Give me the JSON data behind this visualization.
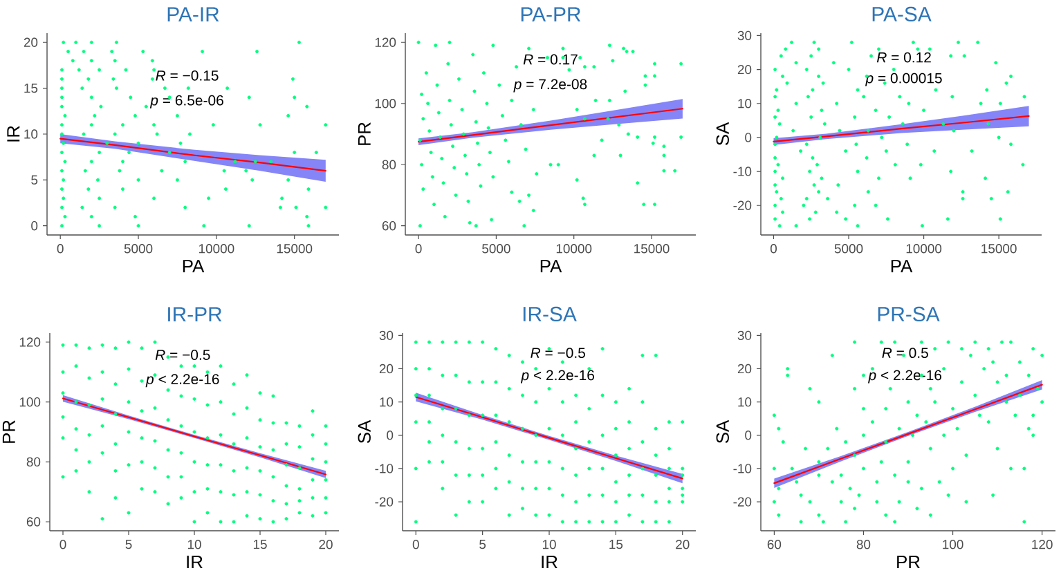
{
  "chart_data": [
    {
      "type": "scatter",
      "title": "PA-IR",
      "xlabel": "PA",
      "ylabel": "IR",
      "xlim": [
        -850,
        17850
      ],
      "ylim": [
        -1,
        21
      ],
      "xticks": [
        0,
        5000,
        10000,
        15000
      ],
      "yticks": [
        0,
        5,
        10,
        15,
        20
      ],
      "annotations": [
        "*R* = −0.15",
        "*p* = 6.5e-06"
      ],
      "series": [
        {
          "marker": "circle",
          "color": "#00ff7f",
          "x": [
            200,
            1000,
            2000,
            3600,
            15300,
            500,
            1500,
            3300,
            5300,
            9100,
            12600,
            800,
            2000,
            3500,
            5900,
            100,
            1200,
            2500,
            4200,
            6000,
            100,
            1800,
            3400,
            5900,
            14900,
            100,
            1400,
            3600,
            6700,
            8200,
            10700,
            100,
            2000,
            4500,
            7000,
            12100,
            15000,
            100,
            2600,
            5500,
            15800,
            300,
            2200,
            4800,
            7500,
            14600,
            100,
            2000,
            4000,
            6000,
            9800,
            12800,
            17000,
            100,
            1500,
            3500,
            6200,
            8300,
            200,
            3000,
            5000,
            7700,
            100,
            2500,
            4400,
            7000,
            15000,
            16400,
            300,
            2000,
            4000,
            8000,
            11200,
            12500,
            13500,
            100,
            1600,
            3800,
            6500,
            10500,
            11900,
            200,
            2400,
            5000,
            7500,
            12300,
            14600,
            100,
            1800,
            4000,
            10600,
            15900,
            200,
            2500,
            6000,
            9500,
            14200,
            100,
            1400,
            3500,
            8000,
            14100,
            15100,
            17000,
            300,
            2000,
            4800,
            15800,
            100,
            2500,
            5000,
            9200,
            12100,
            15900
          ],
          "values": [
            20,
            20,
            20,
            20,
            20,
            19,
            19,
            19,
            19,
            19,
            19,
            18,
            18,
            18,
            18,
            17,
            17,
            17,
            17,
            17,
            16,
            16,
            16,
            16,
            16,
            15,
            15,
            15,
            15,
            15,
            15,
            14,
            14,
            14,
            14,
            14,
            14,
            13,
            13,
            13,
            13,
            12,
            12,
            12,
            12,
            12,
            11,
            11,
            11,
            11,
            11,
            11,
            11,
            10,
            10,
            10,
            10,
            10,
            9,
            9,
            9,
            9,
            8,
            8,
            8,
            8,
            8,
            8,
            7,
            7,
            7,
            7,
            7,
            7,
            7,
            6,
            6,
            6,
            6,
            6,
            6,
            5,
            5,
            5,
            5,
            5,
            5,
            4,
            4,
            4,
            4,
            4,
            3,
            3,
            3,
            3,
            3,
            2,
            2,
            2,
            2,
            2,
            2,
            2,
            1,
            1,
            1,
            1,
            0,
            0,
            0,
            0,
            0,
            0
          ]
        },
        {
          "type": "line",
          "color": "#ff0000",
          "x": [
            0,
            3500,
            8500,
            12750,
            17000
          ],
          "values": [
            9.5,
            8.8,
            7.7,
            6.9,
            6.0
          ],
          "lower": [
            9.0,
            8.4,
            7.1,
            6.0,
            4.8
          ],
          "upper": [
            10.0,
            9.2,
            8.3,
            7.7,
            7.2
          ]
        }
      ]
    },
    {
      "type": "scatter",
      "title": "PA-PR",
      "xlabel": "PA",
      "ylabel": "PR",
      "xlim": [
        -850,
        17850
      ],
      "ylim": [
        57,
        123
      ],
      "xticks": [
        0,
        5000,
        10000,
        15000
      ],
      "yticks": [
        60,
        80,
        100,
        120
      ],
      "annotations": [
        "*R* = 0.17",
        "*p* = 7.2e-08"
      ],
      "series": [
        {
          "marker": "circle",
          "color": "#00ff7f",
          "x": [
            0,
            100,
            200,
            300,
            100,
            200,
            300,
            500,
            600,
            700,
            800,
            900,
            1000,
            1100,
            1200,
            1300,
            1400,
            1500,
            1600,
            1700,
            1900,
            2000,
            2100,
            2200,
            2300,
            2400,
            2000,
            2600,
            2800,
            2900,
            3000,
            3100,
            3200,
            3300,
            3500,
            3600,
            3700,
            3800,
            3900,
            4000,
            3700,
            4200,
            4400,
            4500,
            4600,
            4800,
            4700,
            4800,
            5200,
            5400,
            5600,
            5800,
            6000,
            6000,
            6300,
            6600,
            6900,
            7400,
            12300,
            13200,
            13400,
            13800,
            12500,
            15200,
            9700,
            10700,
            11300,
            15200,
            14600,
            8300,
            9300,
            9300,
            10400,
            7100,
            14600,
            13300,
            12300,
            11400,
            10200,
            10700,
            12200,
            12900,
            13500,
            14100,
            15200,
            15100,
            15800,
            16900,
            15800,
            9000,
            8500,
            7600,
            10200,
            10600,
            14500,
            10700,
            6500,
            6800,
            11800,
            11300,
            13000,
            14100,
            15800,
            7100,
            7400,
            16900,
            16500,
            15200
          ],
          "values": [
            120,
            60,
            103,
            95,
            88,
            80,
            72,
            110,
            100,
            91,
            84,
            76,
            67,
            119,
            106,
            97,
            89,
            82,
            74,
            63,
            113,
            101,
            93,
            86,
            79,
            70,
            120,
            108,
            98,
            90,
            83,
            77,
            68,
            61,
            116,
            104,
            94,
            87,
            80,
            73,
            60,
            110,
            100,
            92,
            84,
            76,
            62,
            119,
            106,
            96,
            88,
            81,
            71,
            101,
            112,
            93,
            85,
            98,
            119,
            118,
            117,
            117,
            114,
            113,
            111,
            112,
            112,
            109,
            109,
            115,
            115,
            118,
            115,
            118,
            106,
            104,
            101,
            101,
            98,
            95,
            95,
            93,
            90,
            89,
            89,
            87,
            86,
            89,
            83,
            80,
            80,
            77,
            75,
            69,
            67,
            67,
            68,
            60,
            88,
            83,
            83,
            74,
            78,
            70,
            65,
            113,
            78,
            67
          ]
        },
        {
          "type": "line",
          "color": "#ff0000",
          "x": [
            0,
            3500,
            8500,
            12750,
            17000
          ],
          "values": [
            87.5,
            89.7,
            92.9,
            95.6,
            98.3
          ],
          "lower": [
            86.4,
            88.8,
            91.4,
            93.3,
            95.1
          ],
          "upper": [
            88.6,
            90.6,
            94.4,
            97.9,
            101.5
          ]
        }
      ]
    },
    {
      "type": "scatter",
      "title": "PA-SA",
      "xlabel": "PA",
      "ylabel": "SA",
      "xlim": [
        -850,
        17850
      ],
      "ylim": [
        -28.7,
        30.7
      ],
      "xticks": [
        0,
        5000,
        10000,
        15000
      ],
      "yticks": [
        -20,
        -10,
        0,
        10,
        20,
        30
      ],
      "annotations": [
        "*R* = 0.12",
        "*p* = 0.00015"
      ],
      "series": [
        {
          "marker": "circle",
          "color": "#00ff7f",
          "x": [
            1200,
            2700,
            5200,
            9300,
            800,
            3000,
            7000,
            500,
            2500,
            6500,
            1500,
            4000,
            100,
            2200,
            5000,
            8000,
            600,
            3000,
            6200,
            900,
            3300,
            7400,
            200,
            2600,
            5600,
            100,
            2300,
            6000,
            8400,
            1500,
            4200,
            9000,
            300,
            3200,
            6800,
            100,
            2500,
            5400,
            7700,
            400,
            3400,
            8600,
            1300,
            4400,
            6300,
            200,
            3100,
            7200,
            100,
            2200,
            5500,
            8900,
            1800,
            4800,
            7500,
            100,
            2600,
            6200,
            300,
            2900,
            8100,
            100,
            2400,
            5600,
            600,
            3200,
            7000,
            100,
            2700,
            4300,
            200,
            3000,
            6300,
            500,
            2200,
            3600,
            100,
            2000,
            5400,
            6800,
            600,
            2800,
            4200,
            100,
            2400,
            4800,
            7600,
            400,
            1500,
            5600,
            12300,
            13600,
            9600,
            10400,
            11800,
            12700,
            14800,
            15800,
            15500,
            16700,
            14200,
            13800,
            15100,
            10800,
            11900,
            10000,
            11300,
            12000,
            14300,
            15000,
            15800,
            16600,
            10700,
            9800,
            14100,
            12600,
            14500,
            15600,
            11600,
            9900,
            15100,
            12600,
            13200,
            11800,
            9100
          ],
          "values": [
            28,
            28,
            28,
            28,
            26,
            26,
            26,
            24,
            24,
            24,
            22,
            22,
            20,
            20,
            20,
            20,
            18,
            18,
            18,
            16,
            16,
            16,
            14,
            14,
            14,
            12,
            12,
            12,
            12,
            10,
            10,
            10,
            8,
            8,
            8,
            6,
            6,
            6,
            6,
            4,
            4,
            4,
            2,
            2,
            2,
            0,
            0,
            0,
            -2,
            -2,
            -2,
            -2,
            -4,
            -4,
            -4,
            -6,
            -6,
            -6,
            -8,
            -8,
            -8,
            -10,
            -10,
            -10,
            -12,
            -12,
            -12,
            -14,
            -14,
            -14,
            -16,
            -16,
            -16,
            -18,
            -18,
            -18,
            -20,
            -20,
            -20,
            -20,
            -22,
            -22,
            -22,
            -24,
            -24,
            -24,
            -24,
            -26,
            -26,
            -26,
            28,
            28,
            26,
            26,
            24,
            24,
            22,
            18,
            16,
            12,
            14,
            10,
            10,
            14,
            12,
            8,
            4,
            2,
            4,
            0,
            -2,
            -8,
            -4,
            -8,
            -12,
            -16,
            -18,
            -16,
            -24,
            -26,
            -24,
            -18,
            -4,
            -10,
            -12
          ]
        },
        {
          "type": "line",
          "color": "#ff0000",
          "x": [
            0,
            3500,
            8500,
            12750,
            17000
          ],
          "values": [
            -1.2,
            0.3,
            2.6,
            4.4,
            6.3
          ],
          "lower": [
            -2.2,
            -0.5,
            1.3,
            2.3,
            3.3
          ],
          "upper": [
            -0.2,
            1.1,
            3.9,
            6.5,
            9.3
          ]
        }
      ]
    },
    {
      "type": "scatter",
      "title": "IR-PR",
      "xlabel": "IR",
      "ylabel": "PR",
      "xlim": [
        -1,
        21
      ],
      "ylim": [
        57,
        123
      ],
      "xticks": [
        0,
        5,
        10,
        15,
        20
      ],
      "yticks": [
        60,
        80,
        100,
        120
      ],
      "annotations": [
        "*R* = −0.5",
        "*p* < 2.2e-16"
      ],
      "series": [
        {
          "marker": "circle",
          "color": "#00ff7f",
          "x": [
            0,
            0,
            0,
            0,
            0,
            0,
            1,
            1,
            1,
            1,
            1,
            1,
            2,
            2,
            2,
            2,
            2,
            2,
            3,
            3,
            3,
            3,
            3,
            3,
            4,
            4,
            4,
            4,
            4,
            4,
            5,
            5,
            5,
            5,
            5,
            5,
            6,
            6,
            6,
            6,
            6,
            6,
            7,
            7,
            7,
            7,
            7,
            7,
            8,
            8,
            8,
            8,
            8,
            8,
            9,
            9,
            9,
            9,
            9,
            9,
            10,
            10,
            10,
            10,
            10,
            10,
            11,
            11,
            11,
            11,
            11,
            11,
            12,
            12,
            12,
            12,
            12,
            12,
            13,
            13,
            13,
            13,
            13,
            13,
            14,
            14,
            14,
            14,
            14,
            14,
            15,
            15,
            15,
            15,
            15,
            15,
            16,
            16,
            16,
            16,
            16,
            16,
            17,
            17,
            17,
            17,
            17,
            17,
            18,
            18,
            18,
            18,
            18,
            18,
            19,
            19,
            19,
            19,
            19,
            19,
            20,
            20,
            20,
            20,
            20,
            20
          ],
          "values": [
            119,
            110,
            103,
            95,
            88,
            75,
            119,
            112,
            100,
            91,
            84,
            77,
            118,
            108,
            99,
            89,
            80,
            70,
            119,
            110,
            101,
            92,
            83,
            61,
            118,
            106,
            96,
            86,
            77,
            68,
            120,
            111,
            100,
            90,
            79,
            63,
            118,
            107,
            97,
            88,
            80,
            71,
            120,
            109,
            98,
            87,
            78,
            70,
            115,
            104,
            94,
            84,
            75,
            66,
            112,
            102,
            92,
            83,
            75,
            68,
            112,
            101,
            90,
            80,
            70,
            60,
            110,
            99,
            88,
            79,
            71,
            63,
            112,
            100,
            89,
            79,
            70,
            60,
            106,
            96,
            86,
            77,
            69,
            60,
            109,
            98,
            88,
            78,
            70,
            62,
            103,
            94,
            85,
            77,
            69,
            61,
            102,
            93,
            84,
            75,
            67,
            60,
            93,
            86,
            79,
            72,
            66,
            61,
            92,
            85,
            78,
            71,
            67,
            63,
            97,
            89,
            81,
            74,
            68,
            62,
            92,
            86,
            80,
            74,
            68,
            63
          ]
        },
        {
          "type": "line",
          "color": "#ff0000",
          "x": [
            0,
            5,
            10,
            15,
            20
          ],
          "values": [
            101.2,
            94.9,
            88.5,
            82.2,
            75.8
          ],
          "lower": [
            100.1,
            94.3,
            88.0,
            81.5,
            74.6
          ],
          "upper": [
            102.3,
            95.5,
            89.0,
            82.9,
            77.0
          ]
        }
      ]
    },
    {
      "type": "scatter",
      "title": "IR-SA",
      "xlabel": "IR",
      "ylabel": "SA",
      "xlim": [
        -1,
        21
      ],
      "ylim": [
        -28.7,
        30.7
      ],
      "xticks": [
        0,
        5,
        10,
        15,
        20
      ],
      "yticks": [
        -20,
        -10,
        0,
        10,
        20,
        30
      ],
      "annotations": [
        "*R* = −0.5",
        "*p* < 2.2e-16"
      ],
      "series": [
        {
          "marker": "circle",
          "color": "#00ff7f",
          "x": [
            0,
            0,
            0,
            0,
            0,
            0,
            1,
            1,
            1,
            1,
            1,
            1,
            2,
            2,
            2,
            2,
            2,
            2,
            3,
            3,
            3,
            3,
            3,
            3,
            4,
            4,
            4,
            4,
            4,
            4,
            5,
            5,
            5,
            5,
            5,
            5,
            6,
            6,
            6,
            6,
            6,
            6,
            7,
            7,
            7,
            7,
            7,
            7,
            8,
            8,
            8,
            8,
            8,
            8,
            9,
            9,
            9,
            9,
            9,
            9,
            10,
            10,
            10,
            10,
            10,
            10,
            11,
            11,
            11,
            11,
            11,
            11,
            12,
            12,
            12,
            12,
            12,
            12,
            13,
            13,
            13,
            13,
            13,
            13,
            14,
            14,
            14,
            14,
            14,
            14,
            15,
            15,
            15,
            15,
            15,
            15,
            16,
            16,
            16,
            16,
            16,
            16,
            17,
            17,
            17,
            17,
            17,
            17,
            18,
            18,
            18,
            18,
            18,
            18,
            19,
            19,
            19,
            19,
            19,
            19,
            20,
            20,
            20,
            20,
            20,
            20
          ],
          "values": [
            28,
            20,
            12,
            4,
            -10,
            -26,
            28,
            20,
            12,
            4,
            -2,
            -8,
            28,
            18,
            8,
            0,
            -8,
            -16,
            28,
            18,
            8,
            -2,
            -12,
            -24,
            28,
            16,
            6,
            -4,
            -12,
            -20,
            28,
            16,
            6,
            -4,
            -12,
            -20,
            26,
            16,
            6,
            -2,
            -10,
            -16,
            24,
            14,
            4,
            -6,
            -14,
            -24,
            22,
            12,
            2,
            -8,
            -16,
            -22,
            20,
            10,
            0,
            -8,
            -16,
            -24,
            26,
            14,
            2,
            -8,
            -16,
            -24,
            22,
            10,
            0,
            -10,
            -18,
            -26,
            12,
            4,
            -4,
            -12,
            -20,
            -26,
            20,
            8,
            -2,
            -10,
            -18,
            -26,
            26,
            12,
            0,
            -10,
            -18,
            -26,
            10,
            2,
            -6,
            -14,
            -20,
            -26,
            14,
            4,
            -4,
            -12,
            -18,
            -24,
            24,
            10,
            -2,
            -10,
            -18,
            -26,
            24,
            2,
            -6,
            -12,
            -20,
            -26,
            4,
            -4,
            -10,
            -16,
            -20,
            -26,
            4,
            -10,
            -12,
            -16,
            -18,
            -20
          ]
        },
        {
          "type": "line",
          "color": "#ff0000",
          "x": [
            0,
            5,
            10,
            15,
            20
          ],
          "values": [
            11.5,
            5.4,
            -0.8,
            -6.9,
            -13.0
          ],
          "lower": [
            10.2,
            4.7,
            -1.4,
            -7.7,
            -14.4
          ],
          "upper": [
            12.8,
            6.1,
            -0.2,
            -6.1,
            -11.6
          ]
        }
      ]
    },
    {
      "type": "scatter",
      "title": "PR-SA",
      "xlabel": "PR",
      "ylabel": "SA",
      "xlim": [
        57,
        123
      ],
      "ylim": [
        -28.7,
        30.7
      ],
      "xticks": [
        60,
        80,
        100,
        120
      ],
      "yticks": [
        -20,
        -10,
        0,
        10,
        20,
        30
      ],
      "annotations": [
        "*R* = 0.5",
        "*p* < 2.2e-16"
      ],
      "series": [
        {
          "marker": "circle",
          "color": "#00ff7f",
          "x": [
            60,
            61,
            62,
            63,
            63,
            60,
            61,
            60,
            61,
            66,
            68,
            70,
            73,
            78,
            78,
            80,
            84,
            87,
            93,
            99,
            105,
            111,
            113,
            118,
            120,
            120,
            118,
            117,
            118,
            116,
            113,
            116,
            109,
            103,
            99,
            95,
            92,
            87,
            85,
            76,
            71,
            70,
            75,
            79,
            68,
            66,
            70,
            72,
            75,
            78,
            80,
            82,
            85,
            85,
            88,
            90,
            90,
            92,
            95,
            95,
            98,
            98,
            100,
            102,
            103,
            105,
            107,
            108,
            110,
            112,
            115,
            115,
            100,
            90,
            83,
            77,
            73,
            70,
            65,
            64,
            67,
            74,
            80,
            86,
            93,
            97,
            104,
            110,
            88,
            82,
            76,
            84,
            87,
            91,
            94,
            96,
            101,
            106,
            109,
            112,
            114,
            119,
            117,
            89,
            96,
            102,
            108,
            80,
            78,
            83,
            93
          ],
          "values": [
            6,
            2,
            -2,
            20,
            18,
            -10,
            -16,
            -20,
            -24,
            -26,
            14,
            10,
            24,
            28,
            14,
            18,
            28,
            28,
            28,
            28,
            28,
            28,
            28,
            26,
            24,
            10,
            6,
            2,
            0,
            -10,
            -10,
            -26,
            -18,
            -20,
            -18,
            -24,
            -22,
            -26,
            -24,
            -26,
            -26,
            -24,
            -20,
            -18,
            -20,
            -18,
            -8,
            -4,
            -12,
            -6,
            0,
            4,
            -2,
            8,
            2,
            10,
            -8,
            6,
            14,
            -4,
            0,
            20,
            8,
            16,
            -6,
            12,
            20,
            4,
            16,
            10,
            22,
            12,
            -10,
            -14,
            -14,
            -16,
            -14,
            -12,
            -14,
            -10,
            -4,
            2,
            8,
            14,
            18,
            -14,
            24,
            -4,
            -20,
            20,
            -2,
            -8,
            -12,
            0,
            4,
            10,
            2,
            6,
            22,
            18,
            6,
            14,
            18,
            24,
            26,
            26,
            26,
            -10,
            -22,
            -20,
            -16
          ]
        },
        {
          "type": "line",
          "color": "#ff0000",
          "x": [
            60,
            75,
            90,
            105,
            120
          ],
          "values": [
            -14.4,
            -7.0,
            0.4,
            7.8,
            15.2
          ],
          "lower": [
            -15.8,
            -7.8,
            -0.2,
            7.0,
            13.8
          ],
          "upper": [
            -13.0,
            -6.2,
            1.0,
            8.6,
            16.6
          ]
        }
      ]
    }
  ]
}
